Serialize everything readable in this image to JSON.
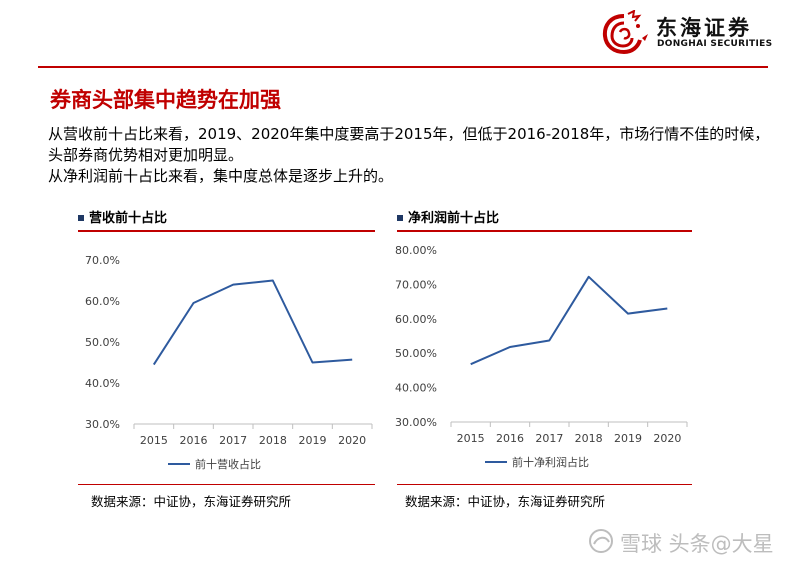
{
  "brand": {
    "name_cn": "东海证券",
    "name_en": "DONGHAI SECURITIES",
    "color": "#c00000",
    "logo_icon": "dragon-logo-icon"
  },
  "slide": {
    "title": "券商头部集中趋势在加强",
    "paragraphs": [
      "从营收前十占比来看，2019、2020年集中度要高于2015年，但低于2016-2018年，市场行情不佳的时候，头部券商优势相对更加明显。",
      "从净利润前十占比来看，集中度总体是逐步上升的。"
    ]
  },
  "panels": [
    {
      "heading": "营收前十占比",
      "source": "数据来源：中证协，东海证券研究所",
      "chart_data": {
        "type": "line",
        "categories": [
          "2015",
          "2016",
          "2017",
          "2018",
          "2019",
          "2020"
        ],
        "series": [
          {
            "name": "前十营收占比",
            "values": [
              44.5,
              59.5,
              64.0,
              65.0,
              45.0,
              45.7
            ],
            "color": "#2e5a9e"
          }
        ],
        "y_ticks": [
          "70.0%",
          "60.0%",
          "50.0%",
          "40.0%",
          "30.0%"
        ],
        "ylim": [
          30,
          70
        ],
        "grid": false,
        "legend_position": "bottom-left"
      }
    },
    {
      "heading": "净利润前十占比",
      "source": "数据来源：中证协，东海证券研究所",
      "chart_data": {
        "type": "line",
        "categories": [
          "2015",
          "2016",
          "2017",
          "2018",
          "2019",
          "2020"
        ],
        "series": [
          {
            "name": "前十净利润占比",
            "values": [
              46.8,
              51.8,
              53.7,
              72.2,
              61.5,
              63.0
            ],
            "color": "#2e5a9e"
          }
        ],
        "y_ticks": [
          "80.00%",
          "70.00%",
          "60.00%",
          "50.00%",
          "40.00%",
          "30.00%"
        ],
        "ylim": [
          30,
          80
        ],
        "grid": false,
        "legend_position": "bottom-left"
      }
    }
  ],
  "watermark": {
    "text": "雪球 头条@大星",
    "icon": "snowball-logo-icon"
  }
}
